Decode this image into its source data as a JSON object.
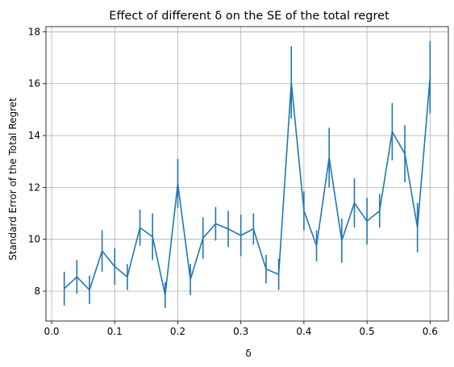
{
  "chart_data": {
    "type": "line",
    "title": "Effect of different δ on the SE of the total regret",
    "xlabel": "δ",
    "ylabel": "Standard Error of the Total Regret",
    "xlim": [
      -0.009,
      0.629
    ],
    "ylim": [
      6.85,
      18.2
    ],
    "xticks": [
      0.0,
      0.1,
      0.2,
      0.3,
      0.4,
      0.5,
      0.6
    ],
    "xtick_labels": [
      "0.0",
      "0.1",
      "0.2",
      "0.3",
      "0.4",
      "0.5",
      "0.6"
    ],
    "yticks": [
      8,
      10,
      12,
      14,
      16,
      18
    ],
    "ytick_labels": [
      "8",
      "10",
      "12",
      "14",
      "16",
      "18"
    ],
    "grid": true,
    "color": "#1f77b4",
    "series": [
      {
        "x": [
          0.02,
          0.04,
          0.06,
          0.08,
          0.1,
          0.12,
          0.14,
          0.16,
          0.18,
          0.2,
          0.22,
          0.24,
          0.26,
          0.28,
          0.3,
          0.32,
          0.34,
          0.36,
          0.38,
          0.4,
          0.42,
          0.44,
          0.46,
          0.48,
          0.5,
          0.52,
          0.54,
          0.56,
          0.58,
          0.6
        ],
        "y": [
          8.1,
          8.55,
          8.05,
          9.55,
          8.95,
          8.55,
          10.45,
          10.1,
          7.85,
          12.15,
          8.45,
          10.05,
          10.6,
          10.4,
          10.15,
          10.4,
          8.85,
          8.65,
          16.05,
          11.1,
          9.75,
          13.15,
          9.95,
          11.4,
          10.7,
          11.1,
          14.15,
          13.3,
          10.45,
          16.25
        ],
        "yerr": [
          0.65,
          0.65,
          0.55,
          0.8,
          0.7,
          0.5,
          0.7,
          0.9,
          0.5,
          0.95,
          0.6,
          0.8,
          0.65,
          0.7,
          0.8,
          0.6,
          0.55,
          0.6,
          1.4,
          0.75,
          0.6,
          1.15,
          0.85,
          0.95,
          0.9,
          0.65,
          1.1,
          1.1,
          0.95,
          1.4
        ]
      }
    ]
  }
}
